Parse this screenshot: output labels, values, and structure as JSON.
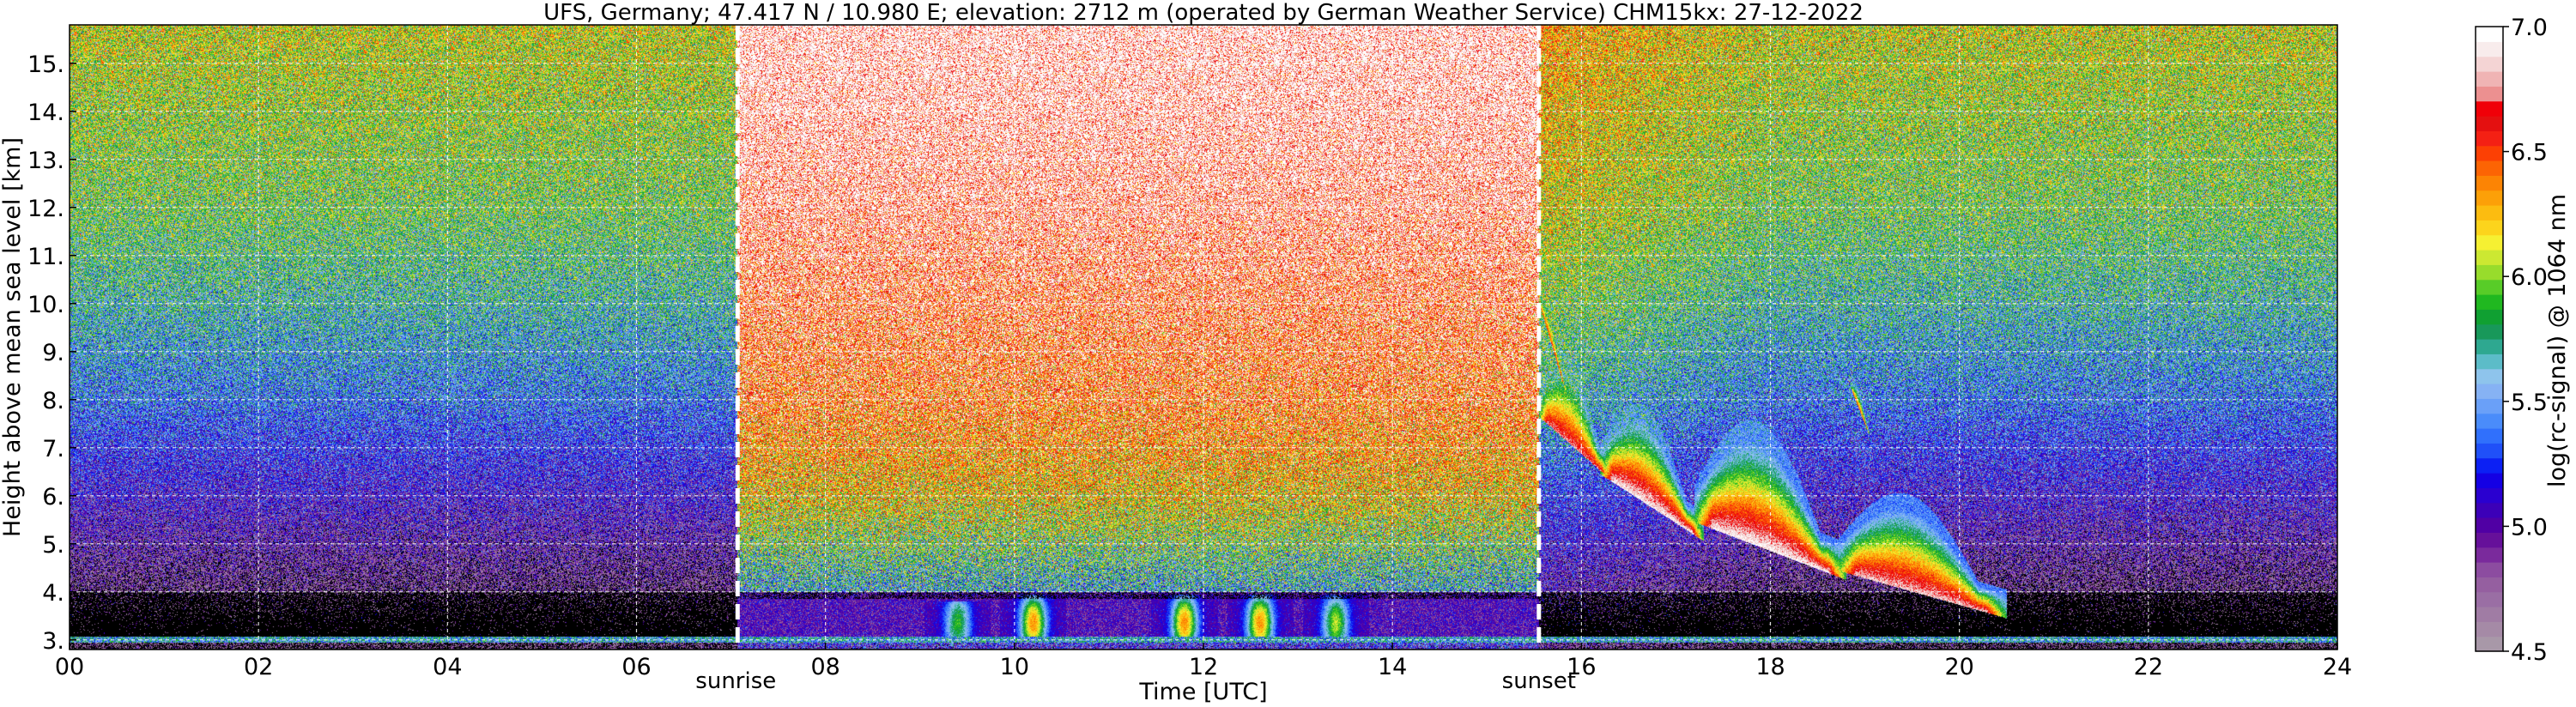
{
  "chart_data": {
    "type": "heatmap",
    "title": "UFS, Germany; 47.417 N / 10.980 E; elevation: 2712 m  (operated by German Weather Service)    CHM15kx: 27-12-2022",
    "xlabel": "Time [UTC]",
    "ylabel": "Height above mean sea level [km]",
    "xlim": [
      0,
      24
    ],
    "ylim": [
      2.8,
      15.8
    ],
    "x_ticks": [
      0,
      2,
      4,
      6,
      8,
      10,
      12,
      14,
      16,
      18,
      20,
      22,
      24
    ],
    "x_tick_labels": [
      "00",
      "02",
      "04",
      "06",
      "08",
      "10",
      "12",
      "14",
      "16",
      "18",
      "20",
      "22",
      "24"
    ],
    "y_ticks": [
      3,
      4,
      5,
      6,
      7,
      8,
      9,
      10,
      11,
      12,
      13,
      14,
      15
    ],
    "y_tick_labels": [
      "3.",
      "4.",
      "5.",
      "6.",
      "7.",
      "8.",
      "9.",
      "10.",
      "11.",
      "12.",
      "13.",
      "14.",
      "15."
    ],
    "grid": true,
    "annotations": [
      {
        "label": "sunrise",
        "x": 7.07
      },
      {
        "label": "sunset",
        "x": 15.55
      }
    ],
    "colorbar": {
      "label": "log(rc-signal) @ 1064 nm",
      "range": [
        4.5,
        7.0
      ],
      "ticks": [
        4.5,
        5.0,
        5.5,
        6.0,
        6.5,
        7.0
      ],
      "tick_labels": [
        "4.5",
        "5.0",
        "5.5",
        "6.0",
        "6.5",
        "7.0"
      ],
      "colors": [
        "#a898a8",
        "#a58aa6",
        "#a07ca4",
        "#9a6ea4",
        "#955fa0",
        "#8c4ca0",
        "#7a2a9c",
        "#66109a",
        "#5000a4",
        "#3c00b8",
        "#2a00d0",
        "#1400e4",
        "#0c20f4",
        "#2050f8",
        "#3070fc",
        "#4a8cfa",
        "#6aa0f8",
        "#86b2f4",
        "#8ec4ec",
        "#5cbcc8",
        "#2ea890",
        "#18985a",
        "#10a032",
        "#20b820",
        "#58cc28",
        "#98dc2c",
        "#cce832",
        "#f6f032",
        "#fcd41c",
        "#fcbc10",
        "#fca008",
        "#fc8404",
        "#fc6404",
        "#fc4004",
        "#f42014",
        "#e41010",
        "#f00008",
        "#ec9090",
        "#f0b4b4",
        "#f4d4d4",
        "#f8ecec",
        "#ffffff"
      ]
    },
    "background_profile_km": [
      2.8,
      3.0,
      4.0,
      5.0,
      6.0,
      7.0,
      8.0,
      10.0,
      12.0,
      14.0,
      15.8
    ],
    "background_night_log": [
      4.5,
      4.55,
      4.65,
      4.85,
      5.05,
      5.25,
      5.45,
      5.7,
      5.9,
      6.0,
      6.1
    ],
    "background_day_log": [
      5.0,
      5.3,
      5.6,
      5.9,
      6.2,
      6.4,
      6.55,
      6.7,
      6.85,
      6.95,
      7.0
    ],
    "boundary_layer_daytime": {
      "base_km": 3.0,
      "top_km": 4.0,
      "time_range": [
        7.1,
        15.5
      ],
      "plumes": [
        {
          "x": 10.2,
          "top_km": 3.95,
          "peak_log": 6.35
        },
        {
          "x": 11.8,
          "top_km": 3.95,
          "peak_log": 6.35
        },
        {
          "x": 12.6,
          "top_km": 3.95,
          "peak_log": 6.35
        },
        {
          "x": 13.4,
          "top_km": 3.95,
          "peak_log": 6.05
        },
        {
          "x": 9.4,
          "top_km": 3.8,
          "peak_log": 5.9
        }
      ]
    },
    "cloud_bands": [
      {
        "t0": 15.55,
        "t1": 16.3,
        "z_start": 7.8,
        "z_end": 6.5,
        "thickness_km": 1.8,
        "peak_log": 6.75
      },
      {
        "t0": 16.2,
        "t1": 17.3,
        "z_start": 6.6,
        "z_end": 5.2,
        "thickness_km": 2.0,
        "peak_log": 6.95
      },
      {
        "t0": 17.2,
        "t1": 18.8,
        "z_start": 5.6,
        "z_end": 4.4,
        "thickness_km": 2.6,
        "peak_log": 6.95
      },
      {
        "t0": 18.7,
        "t1": 20.5,
        "z_start": 4.6,
        "z_end": 3.6,
        "thickness_km": 2.0,
        "peak_log": 6.85
      },
      {
        "t0": 15.55,
        "t1": 15.85,
        "z_start": 10.2,
        "z_end": 8.2,
        "thickness_km": 0.5,
        "peak_log": 6.6
      },
      {
        "t0": 18.85,
        "t1": 19.05,
        "z_start": 8.4,
        "z_end": 7.4,
        "thickness_km": 0.4,
        "peak_log": 6.5
      }
    ]
  }
}
